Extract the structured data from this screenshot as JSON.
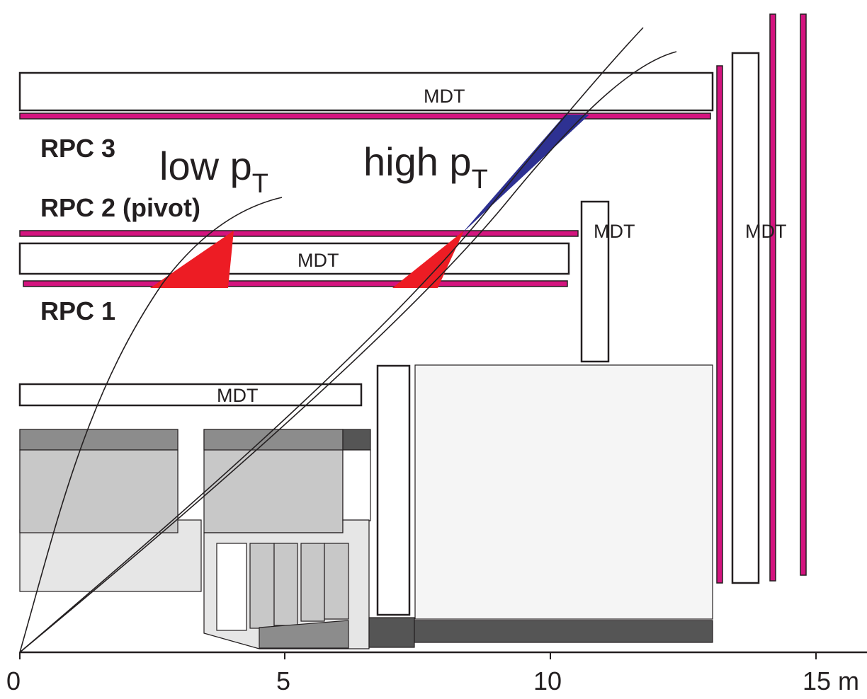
{
  "chamber_label": "MDT",
  "rpc_labels": {
    "rpc3": "RPC 3",
    "rpc2": "RPC 2 (pivot)",
    "rpc1": "RPC 1"
  },
  "momentum_labels": {
    "low": "low p",
    "high": "high p",
    "subscript": "T"
  },
  "axis": {
    "ticks": [
      "0",
      "5",
      "10",
      "15 m"
    ]
  },
  "colors": {
    "rpc": "#d4147f",
    "low_pt_cone": "#ed1c24",
    "high_pt_cone": "#2e3192",
    "outline": "#231f20"
  }
}
